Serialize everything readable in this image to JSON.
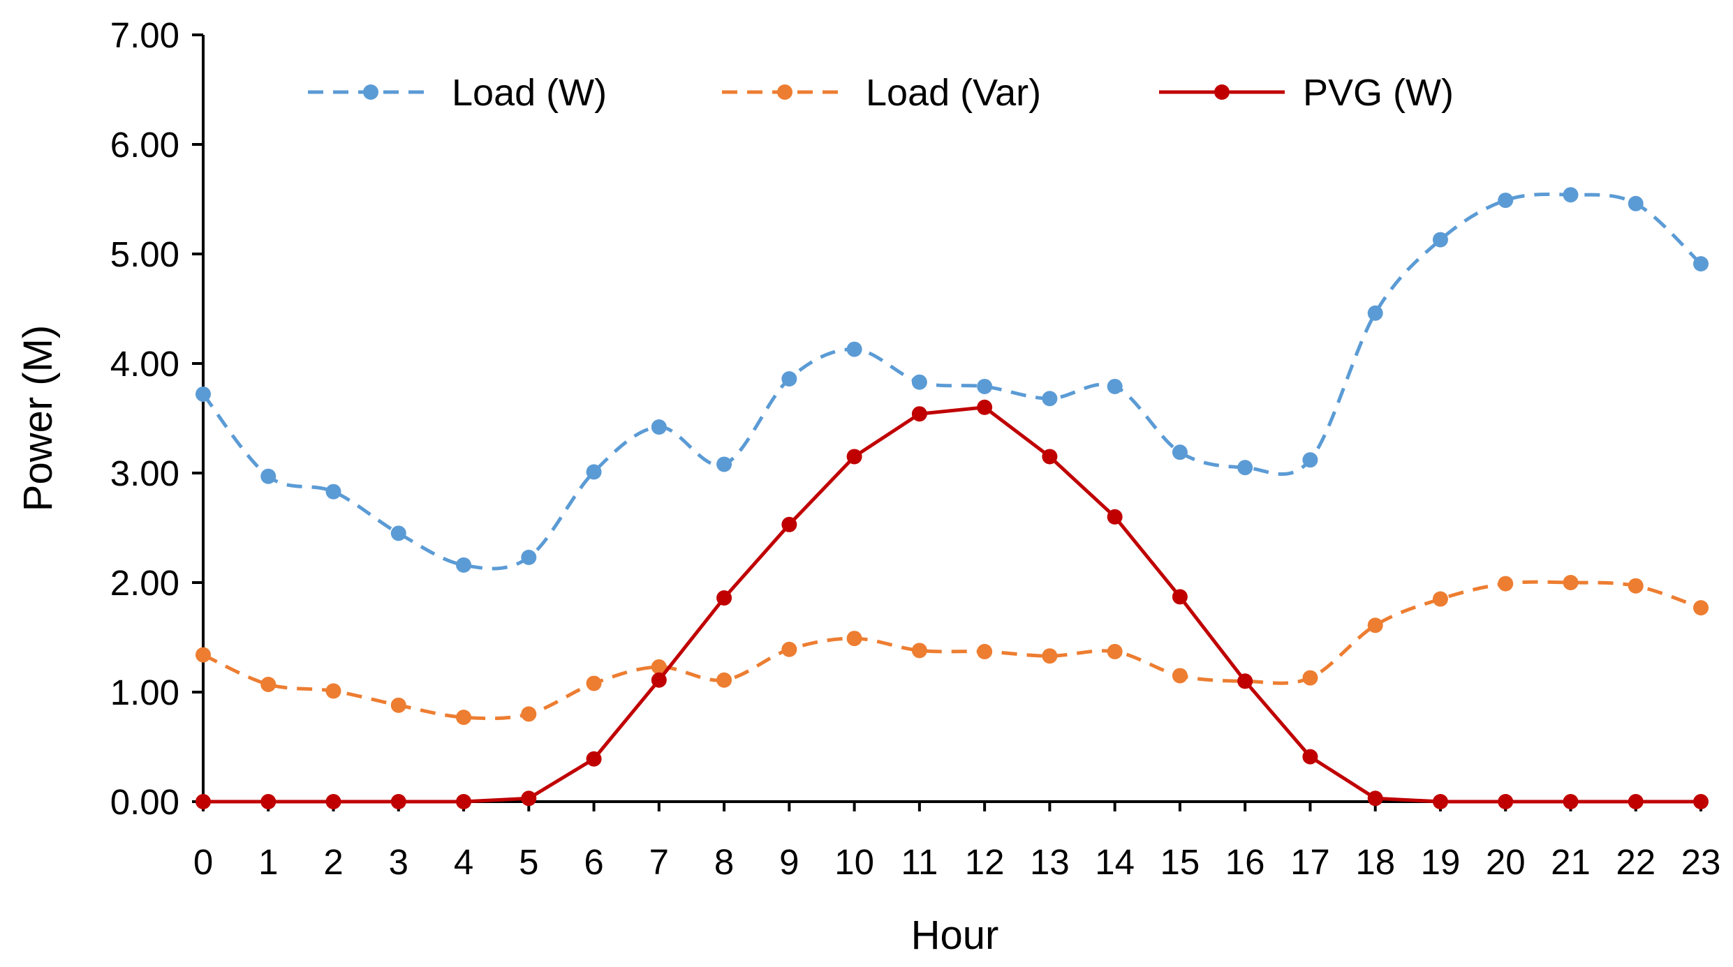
{
  "chart_data": {
    "type": "line",
    "title": "",
    "xlabel": "Hour",
    "ylabel": "Power (M)",
    "x": [
      0,
      1,
      2,
      3,
      4,
      5,
      6,
      7,
      8,
      9,
      10,
      11,
      12,
      13,
      14,
      15,
      16,
      17,
      18,
      19,
      20,
      21,
      22,
      23
    ],
    "xlim": [
      0,
      23
    ],
    "ylim": [
      0,
      7
    ],
    "yticks": [
      "0.00",
      "1.00",
      "2.00",
      "3.00",
      "4.00",
      "5.00",
      "6.00",
      "7.00"
    ],
    "ytick_values": [
      0,
      1,
      2,
      3,
      4,
      5,
      6,
      7
    ],
    "xticks": [
      "0",
      "1",
      "2",
      "3",
      "4",
      "5",
      "6",
      "7",
      "8",
      "9",
      "10",
      "11",
      "12",
      "13",
      "14",
      "15",
      "16",
      "17",
      "18",
      "19",
      "20",
      "21",
      "22",
      "23"
    ],
    "grid": false,
    "legend_position": "top",
    "series": [
      {
        "name": "Load (W)",
        "color": "#5b9bd5",
        "line_style": "dashed",
        "smooth": true,
        "values": [
          3.72,
          2.97,
          2.83,
          2.45,
          2.16,
          2.23,
          3.01,
          3.42,
          3.08,
          3.86,
          4.13,
          3.83,
          3.79,
          3.68,
          3.79,
          3.19,
          3.05,
          3.12,
          4.46,
          5.13,
          5.49,
          5.54,
          5.46,
          4.91
        ]
      },
      {
        "name": "Load (Var)",
        "color": "#ed7d31",
        "line_style": "dashed",
        "smooth": true,
        "values": [
          1.34,
          1.07,
          1.01,
          0.88,
          0.77,
          0.8,
          1.08,
          1.23,
          1.11,
          1.39,
          1.49,
          1.38,
          1.37,
          1.33,
          1.37,
          1.15,
          1.1,
          1.13,
          1.61,
          1.85,
          1.99,
          2.0,
          1.97,
          1.77
        ]
      },
      {
        "name": "PVG (W)",
        "color": "#c00000",
        "line_style": "solid",
        "smooth": false,
        "values": [
          0,
          0,
          0,
          0,
          0,
          0.03,
          0.39,
          1.11,
          1.86,
          2.53,
          3.15,
          3.54,
          3.6,
          3.15,
          2.6,
          1.87,
          1.1,
          0.41,
          0.03,
          0,
          0,
          0,
          0,
          0
        ]
      }
    ]
  }
}
